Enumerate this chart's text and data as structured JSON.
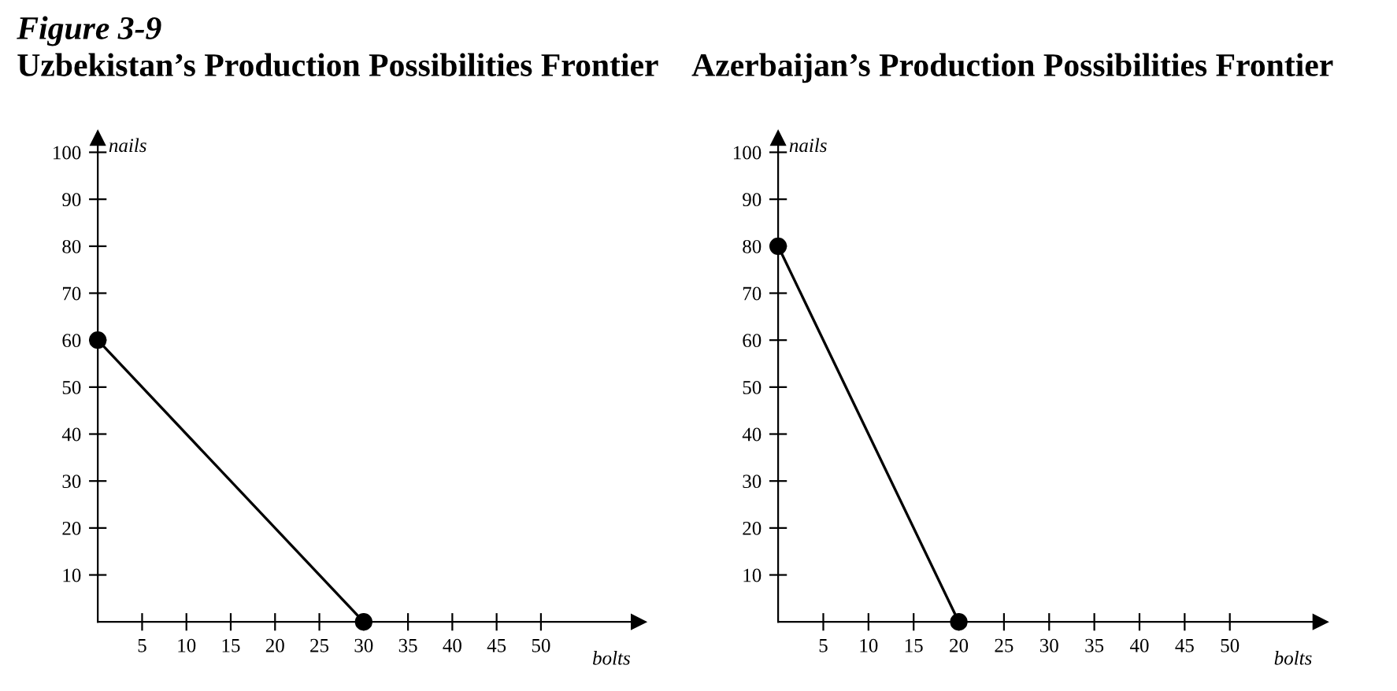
{
  "chart_data": [
    {
      "type": "line",
      "title": "Uzbekistan’s Production Possibilities Frontier",
      "annotations": [
        "Figure 3-9"
      ],
      "xlabel": "bolts",
      "ylabel": "nails",
      "x": [
        0,
        30
      ],
      "series": [
        {
          "color": "#000000",
          "values": [
            60,
            0
          ]
        }
      ],
      "xlim": [
        0,
        61
      ],
      "ylim": [
        0,
        103
      ],
      "xticks": [
        5,
        10,
        15,
        20,
        25,
        30,
        35,
        40,
        45,
        50
      ],
      "yticks": [
        10,
        20,
        30,
        40,
        50,
        60,
        70,
        80,
        90,
        100
      ],
      "marker": "circle",
      "line_style": "solid",
      "grid": false
    },
    {
      "type": "line",
      "title": "Azerbaijan’s Production Possibilities Frontier",
      "xlabel": "bolts",
      "ylabel": "nails",
      "x": [
        0,
        20
      ],
      "series": [
        {
          "color": "#000000",
          "values": [
            80,
            0
          ]
        }
      ],
      "xlim": [
        0,
        60
      ],
      "ylim": [
        0,
        103
      ],
      "xticks": [
        5,
        10,
        15,
        20,
        25,
        30,
        35,
        40,
        45,
        50
      ],
      "yticks": [
        10,
        20,
        30,
        40,
        50,
        60,
        70,
        80,
        90,
        100
      ],
      "marker": "circle",
      "line_style": "solid",
      "grid": false
    }
  ]
}
